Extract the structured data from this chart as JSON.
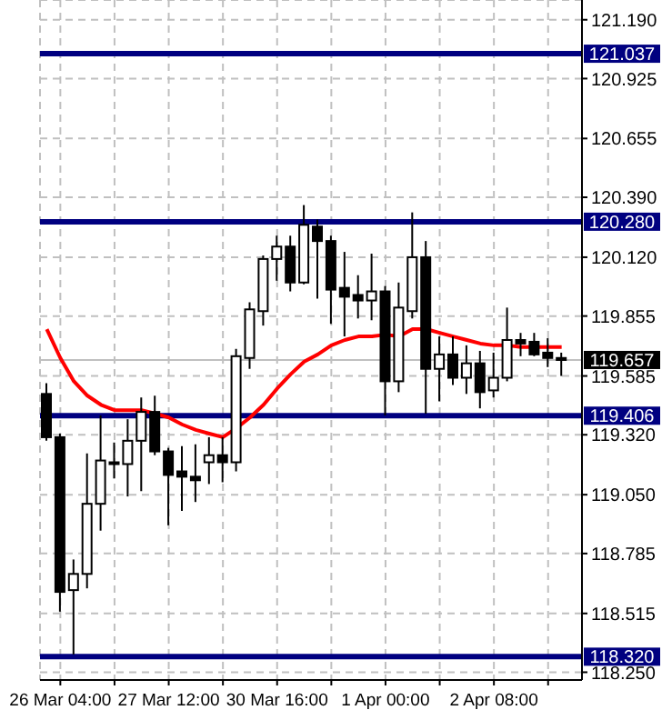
{
  "chart_data": {
    "type": "candlestick",
    "categories": [
      null,
      "26 Mar 04:00",
      null,
      null,
      null,
      null,
      null,
      null,
      null,
      "27 Mar 12:00",
      null,
      null,
      null,
      null,
      null,
      null,
      null,
      "30 Mar 16:00",
      null,
      null,
      null,
      null,
      null,
      null,
      null,
      "1 Apr 00:00",
      null,
      null,
      null,
      null,
      null,
      null,
      null,
      "2 Apr 08:00",
      null,
      null,
      null,
      null,
      null
    ],
    "ohlc": [
      [
        119.504,
        119.552,
        119.293,
        119.309
      ],
      [
        119.309,
        119.325,
        118.523,
        118.612
      ],
      [
        118.62,
        118.758,
        118.33,
        118.693
      ],
      [
        118.693,
        119.236,
        118.628,
        119.009
      ],
      [
        119.009,
        119.407,
        118.888,
        119.204
      ],
      [
        119.188,
        119.285,
        119.123,
        119.196
      ],
      [
        119.188,
        119.39,
        119.042,
        119.293
      ],
      [
        119.293,
        119.488,
        119.066,
        119.423
      ],
      [
        119.423,
        119.496,
        119.228,
        119.245
      ],
      [
        119.245,
        119.261,
        118.912,
        119.139
      ],
      [
        119.155,
        119.269,
        118.977,
        119.131
      ],
      [
        119.131,
        119.277,
        119.017,
        119.115
      ],
      [
        119.196,
        119.309,
        119.098,
        119.228
      ],
      [
        119.228,
        119.309,
        119.106,
        119.196
      ],
      [
        119.196,
        119.707,
        119.155,
        119.674
      ],
      [
        119.666,
        119.917,
        119.617,
        119.885
      ],
      [
        119.877,
        120.128,
        119.812,
        120.112
      ],
      [
        120.112,
        120.217,
        120.014,
        120.168
      ],
      [
        120.168,
        120.217,
        119.966,
        120.006
      ],
      [
        120.006,
        120.355,
        119.998,
        120.266
      ],
      [
        120.258,
        120.29,
        119.933,
        120.193
      ],
      [
        120.193,
        120.217,
        119.82,
        119.974
      ],
      [
        119.982,
        120.144,
        119.763,
        119.942
      ],
      [
        119.95,
        120.039,
        119.844,
        119.925
      ],
      [
        119.925,
        120.136,
        119.836,
        119.966
      ],
      [
        119.966,
        119.99,
        119.407,
        119.561
      ],
      [
        119.561,
        120.006,
        119.512,
        119.893
      ],
      [
        119.877,
        120.322,
        119.844,
        120.12
      ],
      [
        120.12,
        120.193,
        119.415,
        119.617
      ],
      [
        119.617,
        119.763,
        119.471,
        119.682
      ],
      [
        119.682,
        119.763,
        119.544,
        119.577
      ],
      [
        119.577,
        119.723,
        119.504,
        119.642
      ],
      [
        119.642,
        119.698,
        119.439,
        119.512
      ],
      [
        119.52,
        119.69,
        119.488,
        119.577
      ],
      [
        119.577,
        119.893,
        119.561,
        119.747
      ],
      [
        119.747,
        119.779,
        119.674,
        119.731
      ],
      [
        119.739,
        119.779,
        119.674,
        119.682
      ],
      [
        119.69,
        119.755,
        119.625,
        119.666
      ],
      [
        119.666,
        119.69,
        119.585,
        119.657
      ]
    ],
    "series": [
      {
        "type": "line",
        "color": "#ff0000",
        "values": [
          119.796,
          119.666,
          119.561,
          119.496,
          119.455,
          119.431,
          119.431,
          119.431,
          119.415,
          119.398,
          119.366,
          119.342,
          119.325,
          119.309,
          119.35,
          119.398,
          119.455,
          119.528,
          119.593,
          119.65,
          119.682,
          119.723,
          119.747,
          119.763,
          119.763,
          119.771,
          119.763,
          119.796,
          119.796,
          119.779,
          119.763,
          119.747,
          119.731,
          119.723,
          119.723,
          119.715,
          119.715,
          119.715,
          119.715
        ]
      }
    ],
    "ylim": [
      118.215,
      121.279
    ],
    "yticks": [
      {
        "value": 121.19,
        "label": "121.190"
      },
      {
        "value": 120.925,
        "label": "120.925"
      },
      {
        "value": 120.655,
        "label": "120.655"
      },
      {
        "value": 120.39,
        "label": "120.390"
      },
      {
        "value": 120.12,
        "label": "120.120"
      },
      {
        "value": 119.855,
        "label": "119.855"
      },
      {
        "value": 119.585,
        "label": "119.585"
      },
      {
        "value": 119.32,
        "label": "119.320"
      },
      {
        "value": 119.05,
        "label": "119.050"
      },
      {
        "value": 118.785,
        "label": "118.785"
      },
      {
        "value": 118.515,
        "label": "118.515"
      },
      {
        "value": 118.25,
        "label": "118.250"
      }
    ],
    "ref_lines": [
      {
        "axis": "y",
        "value": 121.037,
        "label": "121.037",
        "color": "#000080"
      },
      {
        "axis": "y",
        "value": 120.28,
        "label": "120.280",
        "color": "#000080"
      },
      {
        "axis": "y",
        "value": 119.406,
        "label": "119.406",
        "color": "#000080"
      },
      {
        "axis": "y",
        "value": 118.32,
        "label": "118.320",
        "color": "#000080"
      },
      {
        "axis": "y",
        "value": 119.657,
        "label": "119.657",
        "color": "#c0c0c0"
      }
    ],
    "grid": true
  }
}
